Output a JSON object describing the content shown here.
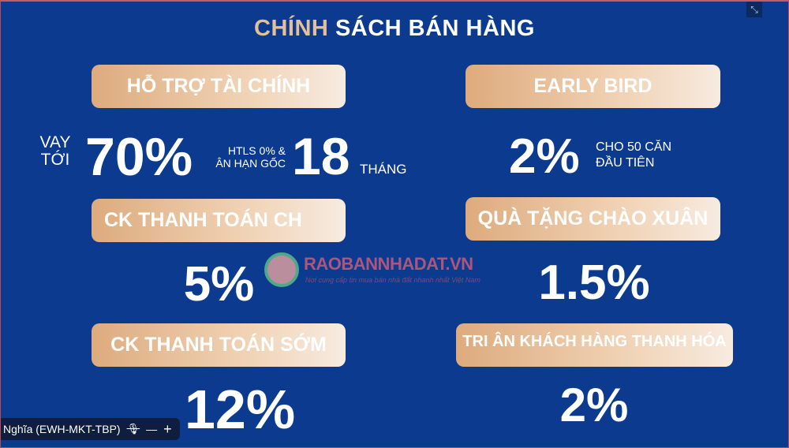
{
  "title": {
    "accent": "CHÍNH",
    "rest": " SÁCH BÁN HÀNG"
  },
  "sections": [
    {
      "label": "HỖ TRỢ TÀI CHÍNH",
      "prefix": "VAY TỚI",
      "value": "70%",
      "note": "HTLS 0% & ÂN HẠN GỐC",
      "value2": "18",
      "unit": "THÁNG"
    },
    {
      "label": "EARLY BIRD",
      "value": "2%",
      "note": "CHO 50 CĂN ĐẦU TIÊN"
    },
    {
      "label": "CK THANH TOÁN CH",
      "value": "5%"
    },
    {
      "label": "QUÀ TẶNG CHÀO XUÂN",
      "value": "1.5%"
    },
    {
      "label": "CK THANH TOÁN SỚM",
      "value": "12%"
    },
    {
      "label": "TRI ÂN KHÁCH HÀNG THANH HÓA",
      "value": "2%"
    }
  ],
  "watermark": {
    "name": "RAOBANNHADAT.VN",
    "tagline": "Nơi cung cấp tin mua bán nhà đất nhanh nhất Việt Nam"
  },
  "participant": {
    "name": "Nghĩa (EWH-MKT-TBP)",
    "mic_icon": "mic-muted-icon",
    "minus": "—",
    "plus": "+"
  },
  "fullscreen_icon": "exit-fullscreen-icon"
}
